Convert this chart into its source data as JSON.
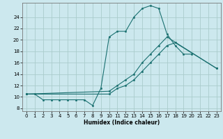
{
  "xlabel": "Humidex (Indice chaleur)",
  "background_color": "#cce8ee",
  "grid_color": "#aacccc",
  "line_color": "#1a7070",
  "xlim": [
    -0.5,
    23.5
  ],
  "ylim": [
    7.5,
    26.5
  ],
  "xtick_labels": [
    "0",
    "1",
    "2",
    "3",
    "4",
    "5",
    "6",
    "7",
    "8",
    "9",
    "10",
    "11",
    "12",
    "13",
    "14",
    "15",
    "16",
    "17",
    "18",
    "19",
    "20",
    "21",
    "22",
    "23"
  ],
  "xticks": [
    0,
    1,
    2,
    3,
    4,
    5,
    6,
    7,
    8,
    9,
    10,
    11,
    12,
    13,
    14,
    15,
    16,
    17,
    18,
    19,
    20,
    21,
    22,
    23
  ],
  "yticks": [
    8,
    10,
    12,
    14,
    16,
    18,
    20,
    22,
    24
  ],
  "series1_x": [
    0,
    1,
    2,
    3,
    4,
    5,
    6,
    7,
    8,
    9,
    10,
    11,
    12,
    13,
    14,
    15,
    16,
    17,
    18,
    19,
    20
  ],
  "series1_y": [
    10.5,
    10.5,
    9.5,
    9.5,
    9.5,
    9.5,
    9.5,
    9.5,
    8.5,
    11.5,
    20.5,
    21.5,
    21.5,
    24.0,
    25.5,
    26.0,
    25.5,
    21.0,
    19.0,
    17.5,
    17.5
  ],
  "series2_x": [
    0,
    10,
    11,
    12,
    13,
    14,
    15,
    16,
    17,
    18,
    23
  ],
  "series2_y": [
    10.5,
    10.5,
    11.5,
    12.0,
    13.0,
    14.5,
    16.0,
    17.5,
    19.0,
    19.5,
    15.0
  ],
  "series3_x": [
    0,
    10,
    11,
    12,
    13,
    14,
    15,
    16,
    17,
    23
  ],
  "series3_y": [
    10.5,
    11.0,
    12.0,
    13.0,
    14.0,
    16.0,
    17.5,
    19.0,
    20.5,
    15.0
  ]
}
